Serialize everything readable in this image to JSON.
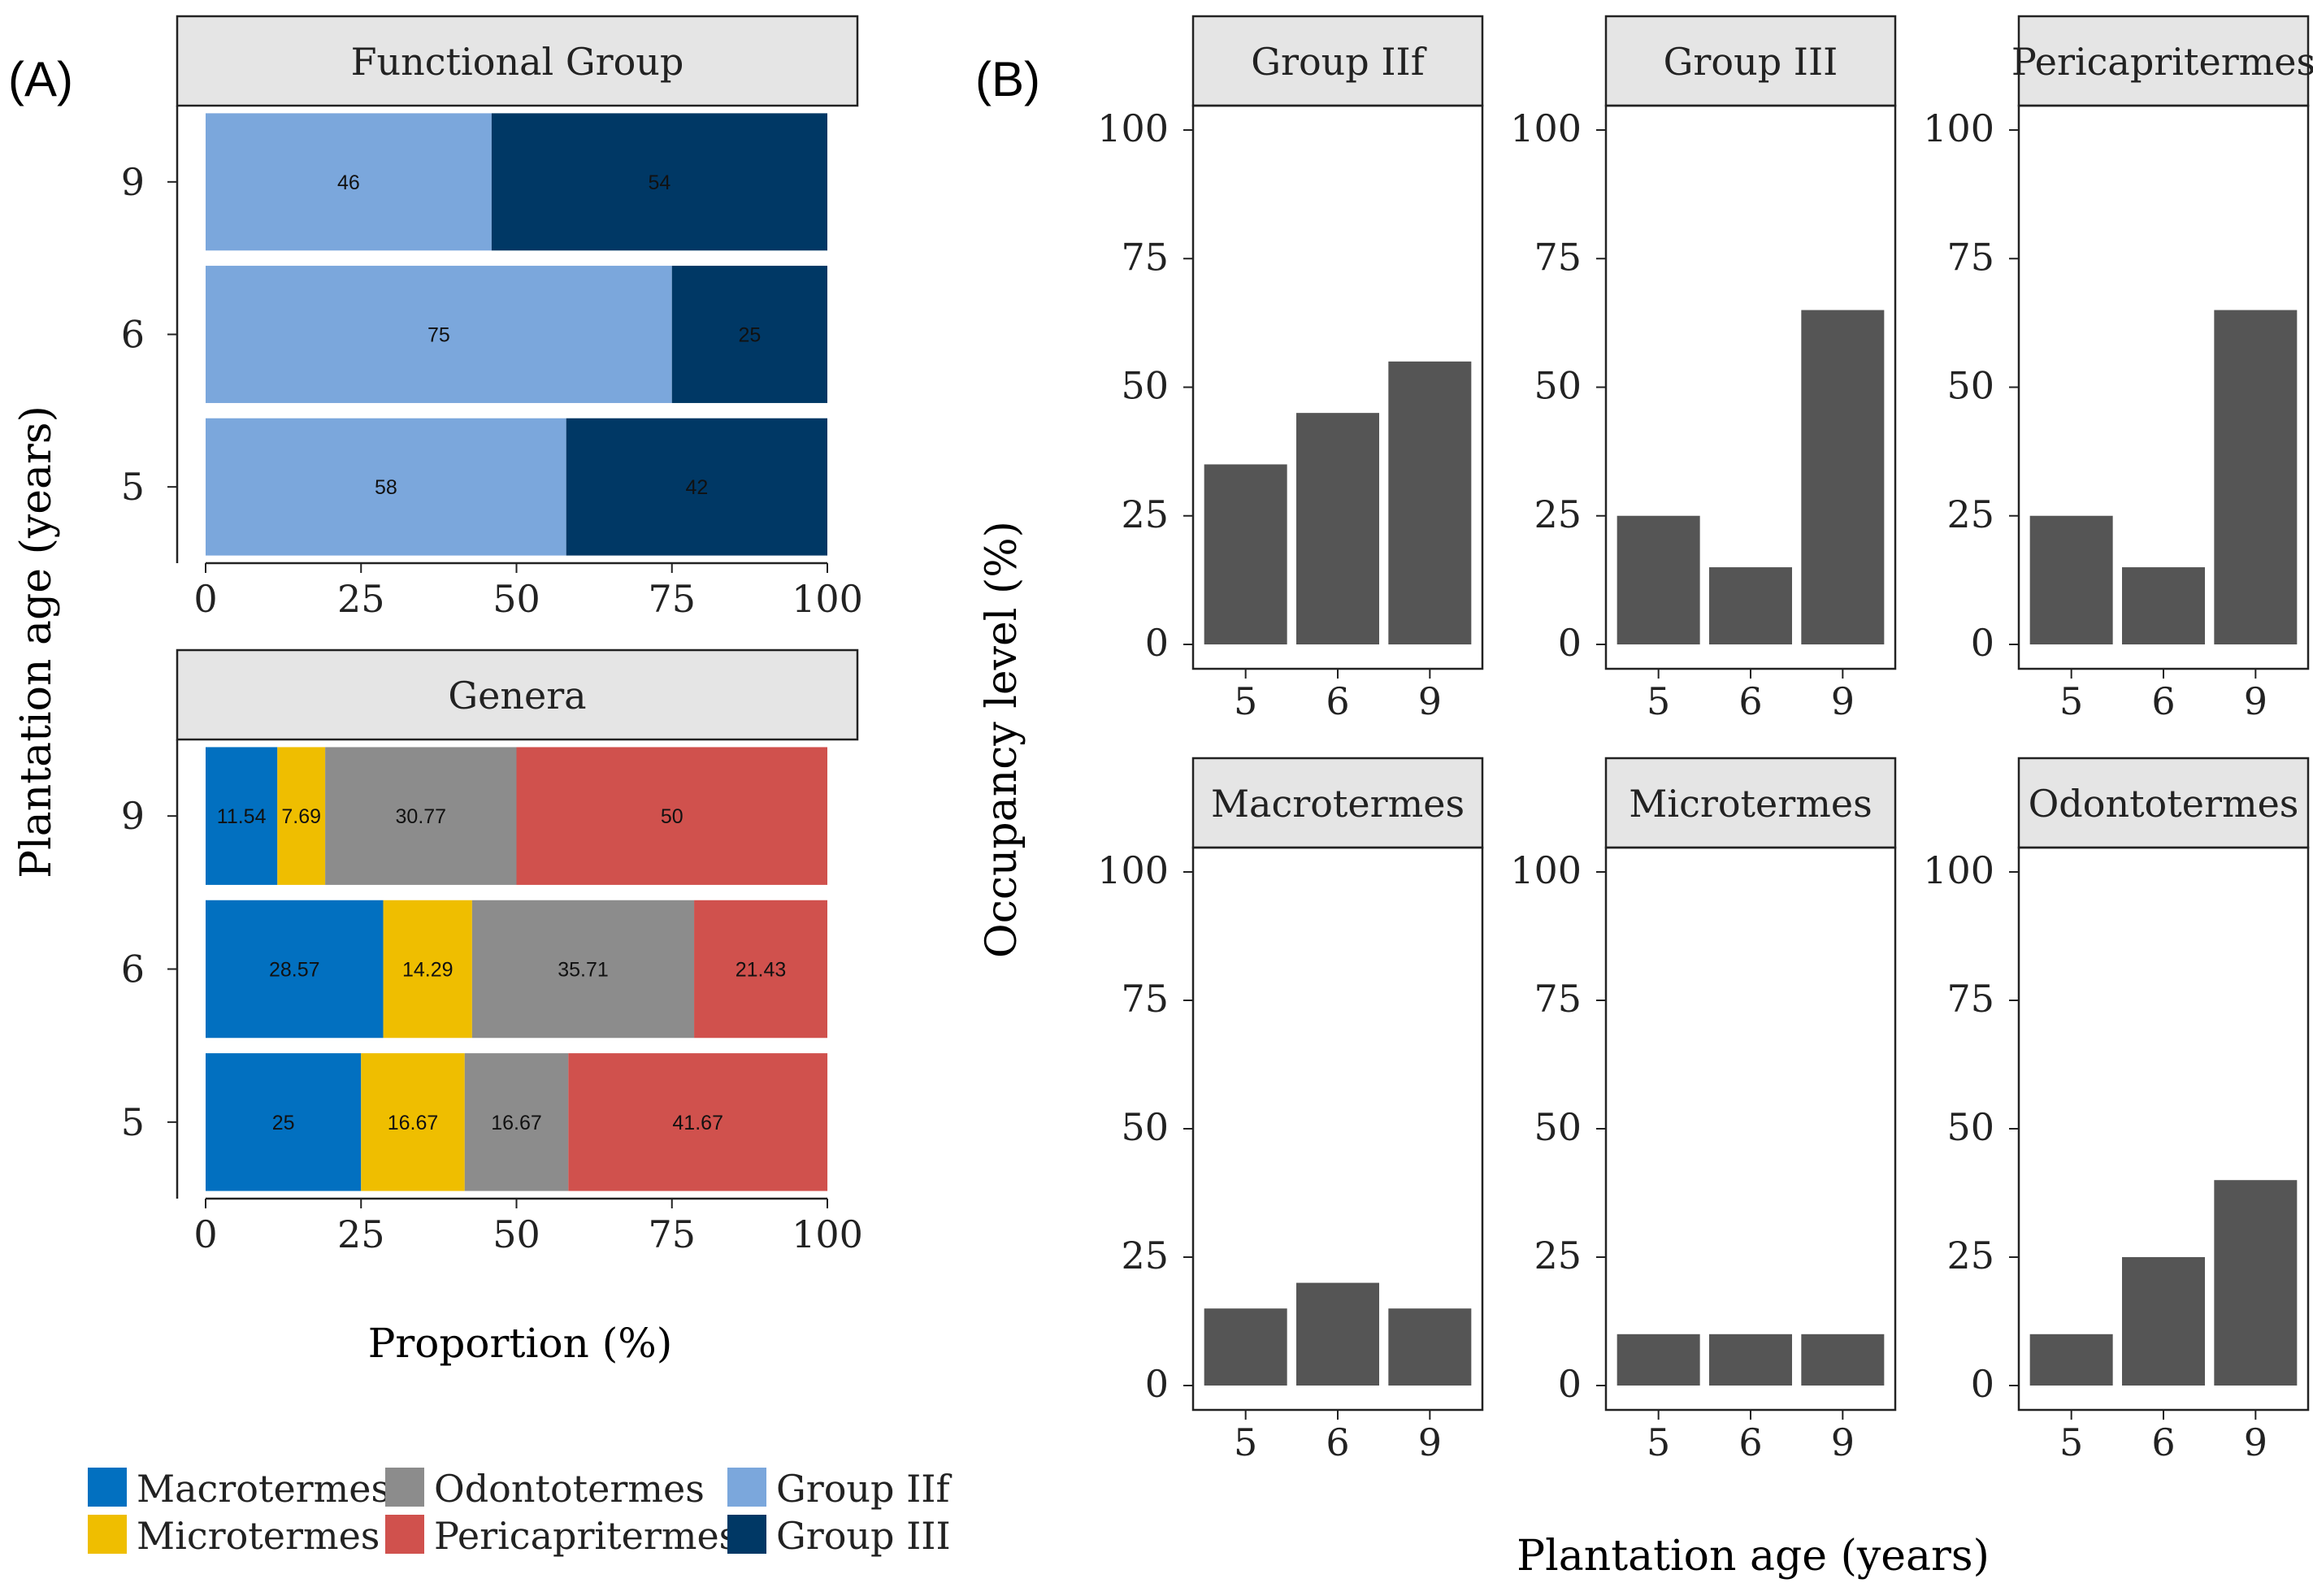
{
  "figure": {
    "label_a": "(A)",
    "label_b": "(B)",
    "panel_a_ylabel": "Plantation age (years)",
    "panel_a_xlabel": "Proportion (%)",
    "panel_b_ylabel": "Occupancy level (%)",
    "panel_b_xlabel": "Plantation age (years)"
  },
  "legend": {
    "items": [
      {
        "label": "Macrotermes",
        "color": "#0270C0"
      },
      {
        "label": "Microtermes",
        "color": "#EFBE00"
      },
      {
        "label": "Odontotermes",
        "color": "#8C8C8C"
      },
      {
        "label": "Pericapritermes",
        "color": "#D0514D"
      },
      {
        "label": "Group IIf",
        "color": "#7BA7DC"
      },
      {
        "label": "Group III",
        "color": "#003865"
      }
    ]
  },
  "chart_data": [
    {
      "type": "bar",
      "orientation": "horizontal",
      "stacked": true,
      "title": "Functional Group",
      "categories": [
        "5",
        "6",
        "9"
      ],
      "series": [
        {
          "name": "Group IIf",
          "color": "#7BA7DC",
          "values": [
            58,
            75,
            46
          ],
          "labels": [
            "58",
            "75",
            "46"
          ]
        },
        {
          "name": "Group III",
          "color": "#003865",
          "values": [
            42,
            25,
            54
          ],
          "labels": [
            "42",
            "25",
            "54"
          ]
        }
      ],
      "xlim": [
        0,
        100
      ],
      "xticks": [
        "0",
        "25",
        "50",
        "75",
        "100"
      ],
      "xlabel": "Proportion (%)",
      "ylabel": "Plantation age (years)"
    },
    {
      "type": "bar",
      "orientation": "horizontal",
      "stacked": true,
      "title": "Genera",
      "categories": [
        "5",
        "6",
        "9"
      ],
      "series": [
        {
          "name": "Macrotermes",
          "color": "#0270C0",
          "values": [
            25,
            28.57,
            11.54
          ],
          "labels": [
            "25",
            "28.57",
            "11.54"
          ]
        },
        {
          "name": "Microtermes",
          "color": "#EFBE00",
          "values": [
            16.67,
            14.29,
            7.69
          ],
          "labels": [
            "16.67",
            "14.29",
            "7.69"
          ]
        },
        {
          "name": "Odontotermes",
          "color": "#8C8C8C",
          "values": [
            16.67,
            35.71,
            30.77
          ],
          "labels": [
            "16.67",
            "35.71",
            "30.77"
          ]
        },
        {
          "name": "Pericapritermes",
          "color": "#D0514D",
          "values": [
            41.67,
            21.43,
            50
          ],
          "labels": [
            "41.67",
            "21.43",
            "50"
          ]
        }
      ],
      "xlim": [
        0,
        100
      ],
      "xticks": [
        "0",
        "25",
        "50",
        "75",
        "100"
      ],
      "xlabel": "Proportion (%)",
      "ylabel": "Plantation age (years)"
    },
    {
      "type": "bar",
      "title": "Group IIf",
      "bar_color": "#555555",
      "categories": [
        "5",
        "6",
        "9"
      ],
      "values": [
        35,
        45,
        55
      ],
      "ylim": [
        0,
        100
      ],
      "yticks": [
        "0",
        "25",
        "50",
        "75",
        "100"
      ],
      "xlabel": "Plantation age (years)",
      "ylabel": "Occupancy level (%)"
    },
    {
      "type": "bar",
      "title": "Group III",
      "bar_color": "#555555",
      "categories": [
        "5",
        "6",
        "9"
      ],
      "values": [
        25,
        15,
        65
      ],
      "ylim": [
        0,
        100
      ],
      "yticks": [
        "0",
        "25",
        "50",
        "75",
        "100"
      ],
      "xlabel": "Plantation age (years)",
      "ylabel": "Occupancy level (%)"
    },
    {
      "type": "bar",
      "title": "Pericapritermes",
      "bar_color": "#555555",
      "categories": [
        "5",
        "6",
        "9"
      ],
      "values": [
        25,
        15,
        65
      ],
      "ylim": [
        0,
        100
      ],
      "yticks": [
        "0",
        "25",
        "50",
        "75",
        "100"
      ],
      "xlabel": "Plantation age (years)",
      "ylabel": "Occupancy level (%)"
    },
    {
      "type": "bar",
      "title": "Macrotermes",
      "bar_color": "#555555",
      "categories": [
        "5",
        "6",
        "9"
      ],
      "values": [
        15,
        20,
        15
      ],
      "ylim": [
        0,
        100
      ],
      "yticks": [
        "0",
        "25",
        "50",
        "75",
        "100"
      ],
      "xlabel": "Plantation age (years)",
      "ylabel": "Occupancy level (%)"
    },
    {
      "type": "bar",
      "title": "Microtermes",
      "bar_color": "#555555",
      "categories": [
        "5",
        "6",
        "9"
      ],
      "values": [
        10,
        10,
        10
      ],
      "ylim": [
        0,
        100
      ],
      "yticks": [
        "0",
        "25",
        "50",
        "75",
        "100"
      ],
      "xlabel": "Plantation age (years)",
      "ylabel": "Occupancy level (%)"
    },
    {
      "type": "bar",
      "title": "Odontotermes",
      "bar_color": "#555555",
      "categories": [
        "5",
        "6",
        "9"
      ],
      "values": [
        10,
        25,
        40
      ],
      "ylim": [
        0,
        100
      ],
      "yticks": [
        "0",
        "25",
        "50",
        "75",
        "100"
      ],
      "xlabel": "Plantation age (years)",
      "ylabel": "Occupancy level (%)"
    }
  ]
}
